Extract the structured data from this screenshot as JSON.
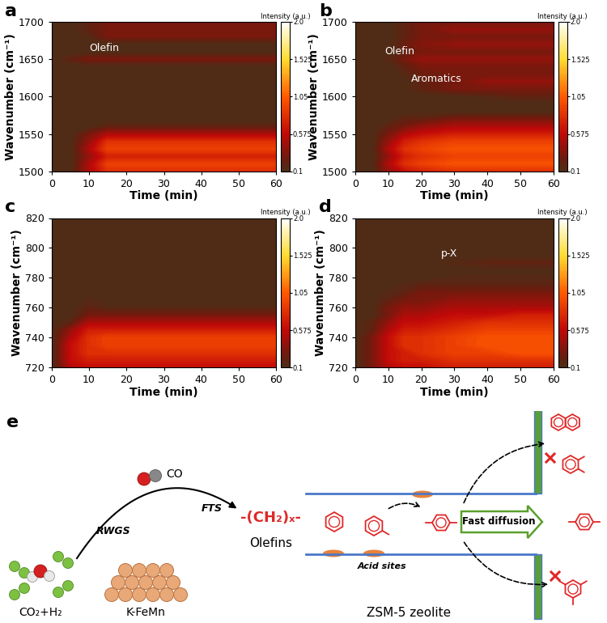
{
  "chart_data": [
    {
      "type": "contour",
      "label": "a",
      "xlabel": "Time (min)",
      "ylabel": "Wavenumber (cm⁻¹)",
      "x": [
        0,
        5,
        10,
        15,
        20,
        30,
        40,
        50,
        60
      ],
      "y": [
        1500,
        1510,
        1520,
        1530,
        1540,
        1550,
        1560,
        1570,
        1580,
        1590,
        1600,
        1610,
        1620,
        1630,
        1640,
        1650,
        1660,
        1670,
        1680,
        1690,
        1700
      ],
      "values": [
        [
          0.1,
          0.1,
          0.5,
          0.8,
          0.8,
          0.8,
          0.8,
          0.8,
          0.8
        ],
        [
          0.1,
          0.1,
          0.5,
          0.9,
          0.9,
          0.9,
          0.9,
          0.9,
          0.9
        ],
        [
          0.1,
          0.1,
          0.4,
          0.7,
          0.7,
          0.7,
          0.7,
          0.7,
          0.7
        ],
        [
          0.1,
          0.1,
          0.5,
          0.9,
          0.9,
          0.9,
          0.9,
          0.9,
          0.9
        ],
        [
          0.1,
          0.1,
          0.4,
          0.8,
          0.8,
          0.8,
          0.8,
          0.8,
          0.8
        ],
        [
          0.1,
          0.1,
          0.3,
          0.5,
          0.5,
          0.5,
          0.5,
          0.5,
          0.5
        ],
        [
          0.1,
          0.1,
          0.1,
          0.2,
          0.2,
          0.2,
          0.2,
          0.2,
          0.2
        ],
        [
          0.1,
          0.1,
          0.1,
          0.1,
          0.1,
          0.1,
          0.1,
          0.1,
          0.1
        ],
        [
          0.1,
          0.1,
          0.1,
          0.1,
          0.1,
          0.1,
          0.1,
          0.1,
          0.1
        ],
        [
          0.1,
          0.1,
          0.1,
          0.1,
          0.1,
          0.1,
          0.1,
          0.1,
          0.1
        ],
        [
          0.1,
          0.1,
          0.1,
          0.1,
          0.1,
          0.1,
          0.1,
          0.1,
          0.1
        ],
        [
          0.1,
          0.1,
          0.1,
          0.1,
          0.1,
          0.1,
          0.1,
          0.1,
          0.1
        ],
        [
          0.1,
          0.1,
          0.1,
          0.1,
          0.1,
          0.1,
          0.1,
          0.1,
          0.1
        ],
        [
          0.1,
          0.1,
          0.1,
          0.1,
          0.1,
          0.1,
          0.1,
          0.1,
          0.1
        ],
        [
          0.1,
          0.1,
          0.1,
          0.1,
          0.1,
          0.1,
          0.1,
          0.1,
          0.1
        ],
        [
          0.1,
          0.2,
          0.3,
          0.3,
          0.3,
          0.3,
          0.3,
          0.3,
          0.3
        ],
        [
          0.1,
          0.1,
          0.1,
          0.1,
          0.1,
          0.1,
          0.1,
          0.1,
          0.1
        ],
        [
          0.1,
          0.1,
          0.1,
          0.1,
          0.1,
          0.1,
          0.1,
          0.1,
          0.1
        ],
        [
          0.1,
          0.1,
          0.15,
          0.3,
          0.3,
          0.3,
          0.3,
          0.3,
          0.3
        ],
        [
          0.1,
          0.1,
          0.2,
          0.3,
          0.3,
          0.3,
          0.3,
          0.3,
          0.3
        ],
        [
          0.1,
          0.1,
          0.2,
          0.3,
          0.3,
          0.3,
          0.3,
          0.3,
          0.3
        ]
      ],
      "xlim": [
        0,
        60
      ],
      "ylim": [
        1500,
        1700
      ],
      "xticks": [
        0,
        10,
        20,
        30,
        40,
        50,
        60
      ],
      "yticks": [
        1500,
        1550,
        1600,
        1650,
        1700
      ],
      "colorbar": {
        "title": "Intensity (a.u.)",
        "range": [
          0.1,
          2.0
        ],
        "ticks": [
          0.1,
          0.575,
          1.05,
          1.525,
          2.0
        ]
      },
      "annotations": [
        {
          "text": "Olefin",
          "x": 10,
          "y": 1665
        }
      ]
    },
    {
      "type": "contour",
      "label": "b",
      "xlabel": "Time (min)",
      "ylabel": "Wavenumber (cm⁻¹)",
      "x": [
        0,
        5,
        10,
        15,
        20,
        30,
        40,
        50,
        60
      ],
      "y": [
        1500,
        1510,
        1520,
        1530,
        1540,
        1550,
        1560,
        1570,
        1580,
        1590,
        1600,
        1610,
        1620,
        1630,
        1640,
        1650,
        1660,
        1670,
        1680,
        1690,
        1700
      ],
      "values": [
        [
          0.1,
          0.1,
          0.4,
          0.6,
          0.7,
          0.8,
          0.8,
          0.8,
          0.8
        ],
        [
          0.1,
          0.1,
          0.5,
          0.8,
          0.9,
          1.0,
          1.0,
          1.0,
          1.0
        ],
        [
          0.1,
          0.1,
          0.4,
          0.7,
          0.8,
          0.9,
          0.9,
          0.9,
          0.9
        ],
        [
          0.1,
          0.1,
          0.5,
          0.8,
          0.9,
          1.0,
          1.0,
          1.0,
          1.0
        ],
        [
          0.1,
          0.1,
          0.4,
          0.7,
          0.8,
          0.9,
          0.9,
          0.9,
          0.9
        ],
        [
          0.1,
          0.1,
          0.3,
          0.5,
          0.6,
          0.7,
          0.7,
          0.7,
          0.7
        ],
        [
          0.1,
          0.1,
          0.2,
          0.3,
          0.4,
          0.5,
          0.5,
          0.5,
          0.5
        ],
        [
          0.1,
          0.1,
          0.1,
          0.2,
          0.2,
          0.3,
          0.3,
          0.3,
          0.3
        ],
        [
          0.1,
          0.1,
          0.1,
          0.1,
          0.1,
          0.1,
          0.1,
          0.1,
          0.1
        ],
        [
          0.1,
          0.1,
          0.1,
          0.1,
          0.1,
          0.1,
          0.1,
          0.1,
          0.1
        ],
        [
          0.1,
          0.1,
          0.1,
          0.1,
          0.1,
          0.1,
          0.15,
          0.2,
          0.2
        ],
        [
          0.1,
          0.1,
          0.1,
          0.1,
          0.2,
          0.3,
          0.3,
          0.3,
          0.3
        ],
        [
          0.1,
          0.1,
          0.1,
          0.1,
          0.2,
          0.3,
          0.4,
          0.4,
          0.4
        ],
        [
          0.1,
          0.1,
          0.1,
          0.15,
          0.25,
          0.3,
          0.3,
          0.3,
          0.3
        ],
        [
          0.1,
          0.1,
          0.1,
          0.2,
          0.3,
          0.3,
          0.3,
          0.3,
          0.3
        ],
        [
          0.1,
          0.1,
          0.15,
          0.3,
          0.4,
          0.4,
          0.4,
          0.4,
          0.4
        ],
        [
          0.1,
          0.1,
          0.1,
          0.2,
          0.3,
          0.3,
          0.3,
          0.3,
          0.3
        ],
        [
          0.1,
          0.1,
          0.1,
          0.25,
          0.35,
          0.4,
          0.4,
          0.4,
          0.4
        ],
        [
          0.1,
          0.1,
          0.1,
          0.2,
          0.3,
          0.3,
          0.3,
          0.3,
          0.3
        ],
        [
          0.1,
          0.1,
          0.1,
          0.2,
          0.3,
          0.4,
          0.4,
          0.4,
          0.4
        ],
        [
          0.1,
          0.1,
          0.1,
          0.2,
          0.3,
          0.3,
          0.3,
          0.3,
          0.3
        ]
      ],
      "xlim": [
        0,
        60
      ],
      "ylim": [
        1500,
        1700
      ],
      "xticks": [
        0,
        10,
        20,
        30,
        40,
        50,
        60
      ],
      "yticks": [
        1500,
        1550,
        1600,
        1650,
        1700
      ],
      "colorbar": {
        "title": "Intensity (a.u.)",
        "range": [
          0.1,
          2.0
        ],
        "ticks": [
          0.1,
          0.575,
          1.05,
          1.525,
          2.0
        ]
      },
      "annotations": [
        {
          "text": "Olefin",
          "x": 9,
          "y": 1660
        },
        {
          "text": "Aromatics",
          "x": 17,
          "y": 1624
        }
      ]
    },
    {
      "type": "contour",
      "label": "c",
      "xlabel": "Time (min)",
      "ylabel": "Wavenumber (cm⁻¹)",
      "x": [
        0,
        5,
        10,
        15,
        20,
        30,
        40,
        50,
        60
      ],
      "y": [
        720,
        725,
        730,
        735,
        740,
        745,
        750,
        755,
        760,
        765,
        770,
        775,
        780,
        785,
        790,
        795,
        800,
        805,
        810,
        815,
        820
      ],
      "values": [
        [
          0.1,
          0.5,
          0.6,
          0.6,
          0.6,
          0.6,
          0.6,
          0.6,
          0.6
        ],
        [
          0.1,
          0.6,
          0.7,
          0.7,
          0.7,
          0.7,
          0.7,
          0.7,
          0.7
        ],
        [
          0.1,
          0.6,
          0.8,
          0.8,
          0.8,
          0.8,
          0.8,
          0.8,
          0.8
        ],
        [
          0.1,
          0.6,
          0.8,
          0.9,
          0.9,
          0.9,
          0.9,
          0.9,
          0.9
        ],
        [
          0.1,
          0.5,
          0.8,
          0.9,
          0.9,
          0.9,
          0.9,
          0.9,
          0.9
        ],
        [
          0.1,
          0.4,
          0.7,
          0.7,
          0.7,
          0.7,
          0.7,
          0.7,
          0.7
        ],
        [
          0.1,
          0.2,
          0.5,
          0.5,
          0.5,
          0.5,
          0.5,
          0.5,
          0.5
        ],
        [
          0.1,
          0.1,
          0.3,
          0.3,
          0.3,
          0.3,
          0.3,
          0.3,
          0.3
        ],
        [
          0.1,
          0.1,
          0.2,
          0.15,
          0.15,
          0.15,
          0.15,
          0.15,
          0.15
        ],
        [
          0.1,
          0.1,
          0.15,
          0.1,
          0.1,
          0.1,
          0.1,
          0.1,
          0.1
        ],
        [
          0.1,
          0.1,
          0.1,
          0.1,
          0.1,
          0.1,
          0.1,
          0.1,
          0.1
        ],
        [
          0.1,
          0.1,
          0.1,
          0.1,
          0.1,
          0.1,
          0.1,
          0.1,
          0.1
        ],
        [
          0.1,
          0.1,
          0.1,
          0.1,
          0.1,
          0.1,
          0.1,
          0.1,
          0.1
        ],
        [
          0.1,
          0.1,
          0.1,
          0.1,
          0.1,
          0.1,
          0.1,
          0.1,
          0.1
        ],
        [
          0.1,
          0.1,
          0.1,
          0.1,
          0.1,
          0.1,
          0.1,
          0.1,
          0.1
        ],
        [
          0.1,
          0.1,
          0.1,
          0.1,
          0.1,
          0.1,
          0.1,
          0.1,
          0.1
        ],
        [
          0.1,
          0.1,
          0.1,
          0.1,
          0.1,
          0.1,
          0.1,
          0.1,
          0.1
        ],
        [
          0.1,
          0.1,
          0.1,
          0.1,
          0.1,
          0.1,
          0.1,
          0.1,
          0.1
        ],
        [
          0.1,
          0.1,
          0.1,
          0.1,
          0.1,
          0.1,
          0.1,
          0.1,
          0.1
        ],
        [
          0.1,
          0.1,
          0.1,
          0.1,
          0.1,
          0.1,
          0.1,
          0.1,
          0.1
        ],
        [
          0.1,
          0.1,
          0.1,
          0.1,
          0.1,
          0.1,
          0.1,
          0.1,
          0.1
        ]
      ],
      "xlim": [
        0,
        60
      ],
      "ylim": [
        720,
        820
      ],
      "xticks": [
        0,
        10,
        20,
        30,
        40,
        50,
        60
      ],
      "yticks": [
        720,
        740,
        760,
        780,
        800,
        820
      ],
      "colorbar": {
        "title": "Intensity (a.u.)",
        "range": [
          0.1,
          2.0
        ],
        "ticks": [
          0.1,
          0.575,
          1.05,
          1.525,
          2.0
        ]
      },
      "annotations": []
    },
    {
      "type": "contour",
      "label": "d",
      "xlabel": "Time (min)",
      "ylabel": "Wavenumber (cm⁻¹)",
      "x": [
        0,
        5,
        10,
        15,
        20,
        30,
        40,
        50,
        60
      ],
      "y": [
        720,
        725,
        730,
        735,
        740,
        745,
        750,
        755,
        760,
        765,
        770,
        775,
        780,
        785,
        790,
        795,
        800,
        805,
        810,
        815,
        820
      ],
      "values": [
        [
          0.1,
          0.3,
          0.5,
          0.6,
          0.6,
          0.7,
          0.7,
          0.7,
          0.7
        ],
        [
          0.1,
          0.3,
          0.6,
          0.7,
          0.7,
          0.8,
          0.8,
          0.8,
          0.8
        ],
        [
          0.1,
          0.3,
          0.6,
          0.7,
          0.8,
          0.9,
          0.9,
          1.0,
          1.0
        ],
        [
          0.1,
          0.3,
          0.6,
          0.8,
          0.8,
          0.9,
          1.0,
          1.0,
          1.0
        ],
        [
          0.1,
          0.3,
          0.6,
          0.8,
          0.8,
          0.9,
          1.0,
          1.0,
          1.0
        ],
        [
          0.1,
          0.2,
          0.5,
          0.7,
          0.7,
          0.8,
          0.9,
          0.9,
          0.9
        ],
        [
          0.1,
          0.2,
          0.4,
          0.6,
          0.6,
          0.7,
          0.8,
          0.8,
          0.8
        ],
        [
          0.1,
          0.1,
          0.3,
          0.5,
          0.5,
          0.6,
          0.6,
          0.7,
          0.7
        ],
        [
          0.1,
          0.1,
          0.3,
          0.4,
          0.4,
          0.5,
          0.5,
          0.5,
          0.5
        ],
        [
          0.1,
          0.1,
          0.2,
          0.3,
          0.3,
          0.4,
          0.4,
          0.4,
          0.4
        ],
        [
          0.1,
          0.1,
          0.15,
          0.2,
          0.3,
          0.3,
          0.3,
          0.3,
          0.3
        ],
        [
          0.1,
          0.1,
          0.1,
          0.15,
          0.2,
          0.2,
          0.2,
          0.2,
          0.2
        ],
        [
          0.1,
          0.1,
          0.1,
          0.1,
          0.1,
          0.15,
          0.15,
          0.15,
          0.15
        ],
        [
          0.1,
          0.1,
          0.1,
          0.1,
          0.1,
          0.1,
          0.1,
          0.1,
          0.1
        ],
        [
          0.1,
          0.1,
          0.1,
          0.1,
          0.1,
          0.15,
          0.2,
          0.2,
          0.2
        ],
        [
          0.1,
          0.1,
          0.1,
          0.1,
          0.1,
          0.1,
          0.1,
          0.1,
          0.1
        ],
        [
          0.1,
          0.1,
          0.1,
          0.1,
          0.1,
          0.1,
          0.1,
          0.1,
          0.1
        ],
        [
          0.1,
          0.1,
          0.1,
          0.1,
          0.1,
          0.1,
          0.1,
          0.1,
          0.1
        ],
        [
          0.1,
          0.1,
          0.1,
          0.1,
          0.1,
          0.1,
          0.1,
          0.1,
          0.1
        ],
        [
          0.1,
          0.1,
          0.1,
          0.1,
          0.1,
          0.1,
          0.1,
          0.1,
          0.1
        ],
        [
          0.1,
          0.1,
          0.1,
          0.1,
          0.1,
          0.1,
          0.1,
          0.1,
          0.1
        ]
      ],
      "xlim": [
        0,
        60
      ],
      "ylim": [
        720,
        820
      ],
      "xticks": [
        0,
        10,
        20,
        30,
        40,
        50,
        60
      ],
      "yticks": [
        720,
        740,
        760,
        780,
        800,
        820
      ],
      "colorbar": {
        "title": "Intensity (a.u.)",
        "range": [
          0.1,
          2.0
        ],
        "ticks": [
          0.1,
          0.575,
          1.05,
          1.525,
          2.0
        ]
      },
      "annotations": [
        {
          "text": "p-X",
          "x": 26,
          "y": 796
        }
      ]
    }
  ],
  "diagram": {
    "label": "e",
    "reactants": "CO₂+H₂",
    "catalyst": "K-FeMn",
    "steps": [
      "RWGS",
      "FTS"
    ],
    "intermediate": "CO",
    "chain": "-(CH₂)ₓ-",
    "product": "Olefins",
    "acid_sites": "Acid sites",
    "diffusion": "Fast diffusion",
    "zeolite": "ZSM-5 zeolite"
  }
}
